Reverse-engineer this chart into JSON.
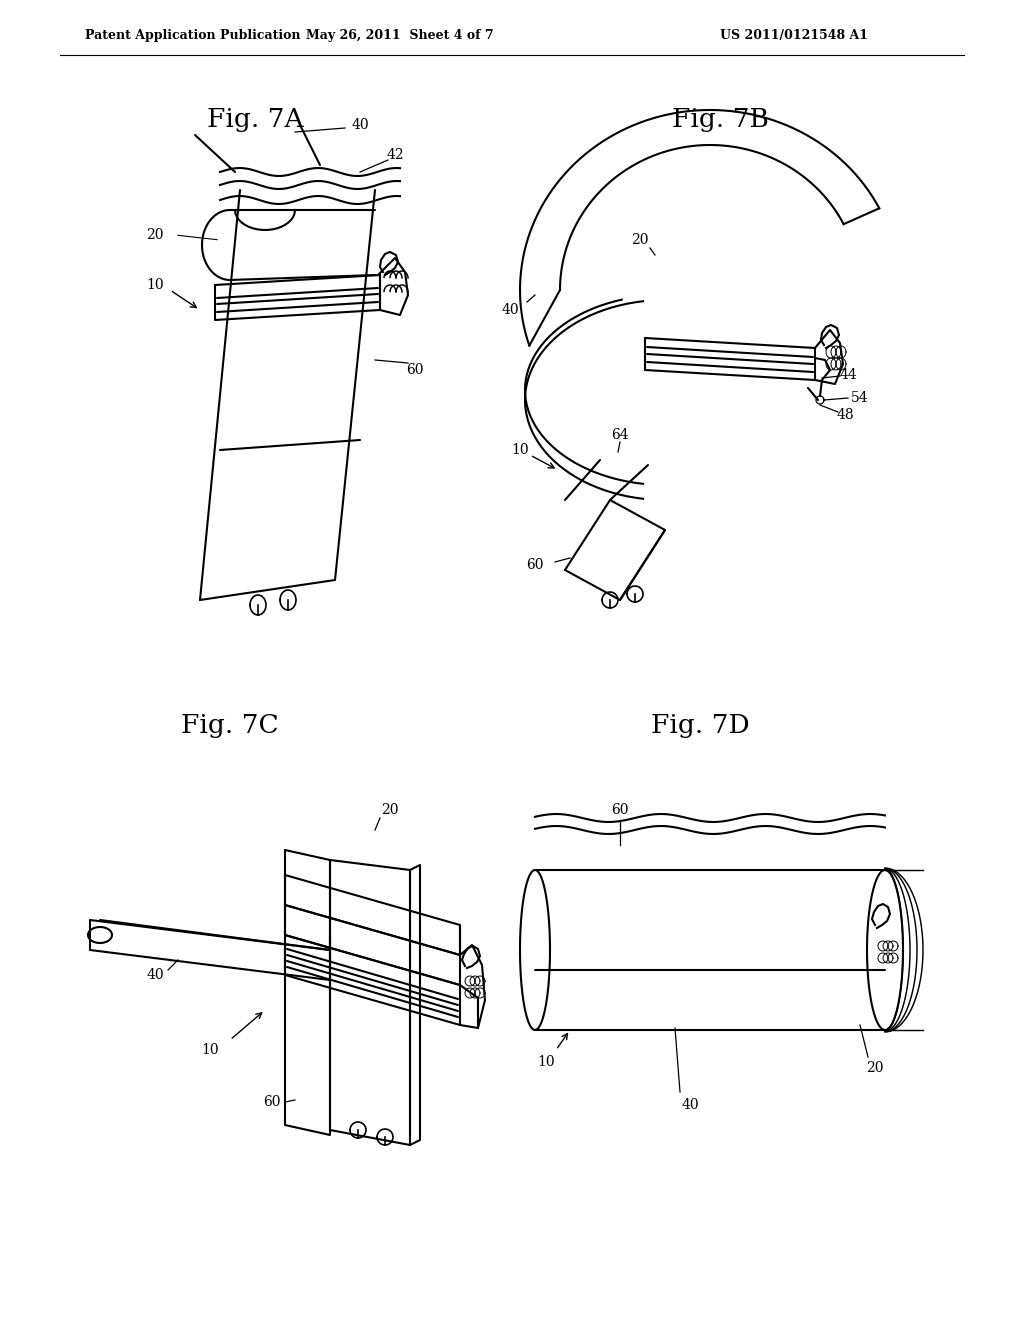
{
  "bg_color": "#ffffff",
  "header_left": "Patent Application Publication",
  "header_mid": "May 26, 2011  Sheet 4 of 7",
  "header_right": "US 2011/0121548 A1",
  "line_color": "#000000",
  "line_width": 1.5,
  "label_fontsize": 10,
  "title_fontsize": 19
}
